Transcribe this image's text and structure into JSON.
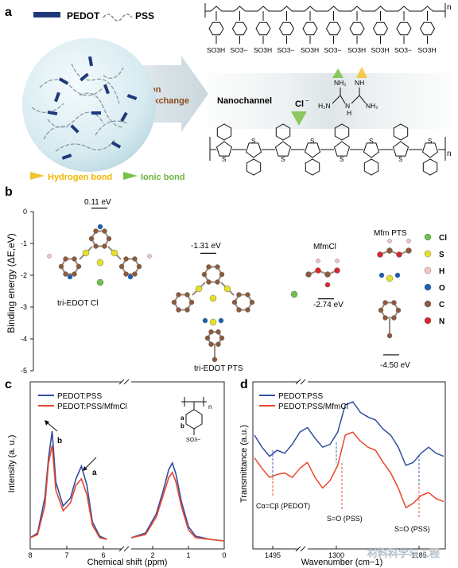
{
  "panel_a": {
    "label": "a",
    "legend_pedot": "PEDOT",
    "legend_pss": "PSS",
    "ion_exchange_1": "Ion",
    "ion_exchange_2": "Exchange",
    "nanochannel": "Nanochannel",
    "chloride": "Cl",
    "chloride_charge": "−",
    "hydrogen_bond": "Hydrogen bond",
    "ionic_bond": "Ionic bond",
    "pss_groups": [
      "SO3H",
      "SO3−",
      "SO3H",
      "SO3−",
      "SO3H",
      "SO3−",
      "SO3H",
      "SO3H",
      "SO3−",
      "SO3H"
    ],
    "n": "n",
    "colors": {
      "pedot": "#1f3a7a",
      "hydrogen": "#f2c230",
      "ionic": "#7bc143"
    }
  },
  "panel_b": {
    "label": "b",
    "ylabel": "Binding energy (ΔE,eV)",
    "labels": [
      "tri-EDOT Cl",
      "tri-EDOT PTS",
      "MfmCl",
      "Mfm PTS"
    ],
    "energies": [
      "0.11 eV",
      "-1.31 eV",
      "-2.74 eV",
      "-4.50 eV"
    ],
    "legend": [
      {
        "sym": "Cl",
        "color": "#6cc24a"
      },
      {
        "sym": "S",
        "color": "#e6e02a"
      },
      {
        "sym": "H",
        "color": "#f4c4c4"
      },
      {
        "sym": "O",
        "color": "#1a5fb4"
      },
      {
        "sym": "C",
        "color": "#8c5a3c"
      },
      {
        "sym": "N",
        "color": "#d7262e"
      }
    ]
  },
  "panel_c": {
    "label": "c",
    "xlabel": "Chemical shift (ppm)",
    "ylabel": "Intensity (a. u.)",
    "legend": [
      "PEDOT:PSS",
      "PEDOT:PSS/MfmCl"
    ],
    "peak_a": "a",
    "peak_b": "b",
    "struct_a": "a",
    "struct_b": "b",
    "n": "n",
    "so3": "SO3−"
  },
  "panel_d": {
    "label": "d",
    "xlabel": "Wavenumber (cm−1)",
    "ylabel": "Transmittance (a.u.)",
    "legend": [
      "PEDOT:PSS",
      "PEDOT:PSS/MfmCl"
    ],
    "ann_cc": "Cα=Cβ (PEDOT)",
    "ann_so1": "S=O (PSS)",
    "ann_so2": "S=O (PSS)"
  },
  "watermark": "材料科学与工程",
  "chart_data": [
    {
      "type": "scatter",
      "title": "",
      "ylabel": "Binding energy (ΔE,eV)",
      "ylim": [
        -5,
        0
      ],
      "yticks": [
        0,
        -1,
        -2,
        -3,
        -4,
        -5
      ],
      "points": [
        {
          "label": "tri-EDOT Cl",
          "value": 0.11
        },
        {
          "label": "tri-EDOT PTS",
          "value": -1.31
        },
        {
          "label": "MfmCl",
          "value": -2.74
        },
        {
          "label": "Mfm PTS",
          "value": -4.5
        }
      ]
    },
    {
      "type": "line",
      "xlabel": "Chemical shift (ppm)",
      "ylabel": "Intensity (a. u.)",
      "xlim": [
        8,
        0
      ],
      "xticks": [
        "8",
        "7",
        "6",
        "2",
        "1",
        "0"
      ],
      "axis_break": true,
      "series": [
        {
          "name": "PEDOT:PSS",
          "color": "#2f4f9e",
          "x": [
            8.0,
            7.8,
            7.6,
            7.5,
            7.4,
            7.3,
            7.1,
            6.9,
            6.75,
            6.6,
            6.45,
            6.3,
            6.1,
            5.9,
            2.6,
            2.2,
            1.9,
            1.7,
            1.55,
            1.45,
            1.35,
            1.2,
            1.0,
            0.8,
            0.4,
            0.0
          ],
          "y": [
            0.05,
            0.08,
            0.3,
            0.55,
            0.72,
            0.4,
            0.25,
            0.3,
            0.42,
            0.5,
            0.38,
            0.15,
            0.06,
            0.04,
            0.05,
            0.08,
            0.2,
            0.35,
            0.48,
            0.52,
            0.45,
            0.28,
            0.12,
            0.06,
            0.04,
            0.03
          ]
        },
        {
          "name": "PEDOT:PSS/MfmCl",
          "color": "#e8462c",
          "x": [
            8.0,
            7.8,
            7.6,
            7.5,
            7.4,
            7.3,
            7.1,
            6.9,
            6.75,
            6.6,
            6.45,
            6.3,
            6.1,
            5.9,
            2.6,
            2.2,
            1.9,
            1.7,
            1.55,
            1.45,
            1.35,
            1.2,
            1.0,
            0.8,
            0.4,
            0.0
          ],
          "y": [
            0.05,
            0.07,
            0.25,
            0.52,
            0.63,
            0.35,
            0.22,
            0.27,
            0.38,
            0.42,
            0.32,
            0.13,
            0.05,
            0.04,
            0.05,
            0.07,
            0.18,
            0.32,
            0.43,
            0.46,
            0.4,
            0.25,
            0.1,
            0.05,
            0.04,
            0.03
          ]
        }
      ]
    },
    {
      "type": "line",
      "xlabel": "Wavenumber (cm−1)",
      "ylabel": "Transmittance (a.u.)",
      "xticks": [
        "1495",
        "1300",
        "1185"
      ],
      "axis_break": true,
      "series": [
        {
          "name": "PEDOT:PSS",
          "color": "#2f4f9e",
          "x": [
            0,
            0.04,
            0.08,
            0.12,
            0.16,
            0.2,
            0.24,
            0.28,
            0.32,
            0.36,
            0.4,
            0.44,
            0.48,
            0.52,
            0.56,
            0.6,
            0.64,
            0.68,
            0.72,
            0.76,
            0.8,
            0.84,
            0.88,
            0.92,
            0.96,
            1.0
          ],
          "y": [
            0.7,
            0.62,
            0.56,
            0.6,
            0.58,
            0.64,
            0.72,
            0.75,
            0.68,
            0.62,
            0.64,
            0.72,
            0.9,
            0.92,
            0.85,
            0.82,
            0.8,
            0.74,
            0.7,
            0.62,
            0.5,
            0.52,
            0.58,
            0.62,
            0.58,
            0.56
          ]
        },
        {
          "name": "PEDOT:PSS/MfmCl",
          "color": "#e8462c",
          "x": [
            0,
            0.04,
            0.08,
            0.12,
            0.16,
            0.2,
            0.24,
            0.28,
            0.32,
            0.36,
            0.4,
            0.44,
            0.48,
            0.52,
            0.56,
            0.6,
            0.64,
            0.68,
            0.72,
            0.76,
            0.8,
            0.84,
            0.88,
            0.92,
            0.96,
            1.0
          ],
          "y": [
            0.55,
            0.48,
            0.42,
            0.44,
            0.45,
            0.42,
            0.48,
            0.52,
            0.42,
            0.35,
            0.4,
            0.5,
            0.7,
            0.72,
            0.66,
            0.62,
            0.6,
            0.52,
            0.45,
            0.35,
            0.22,
            0.25,
            0.3,
            0.32,
            0.28,
            0.26
          ]
        }
      ]
    }
  ]
}
